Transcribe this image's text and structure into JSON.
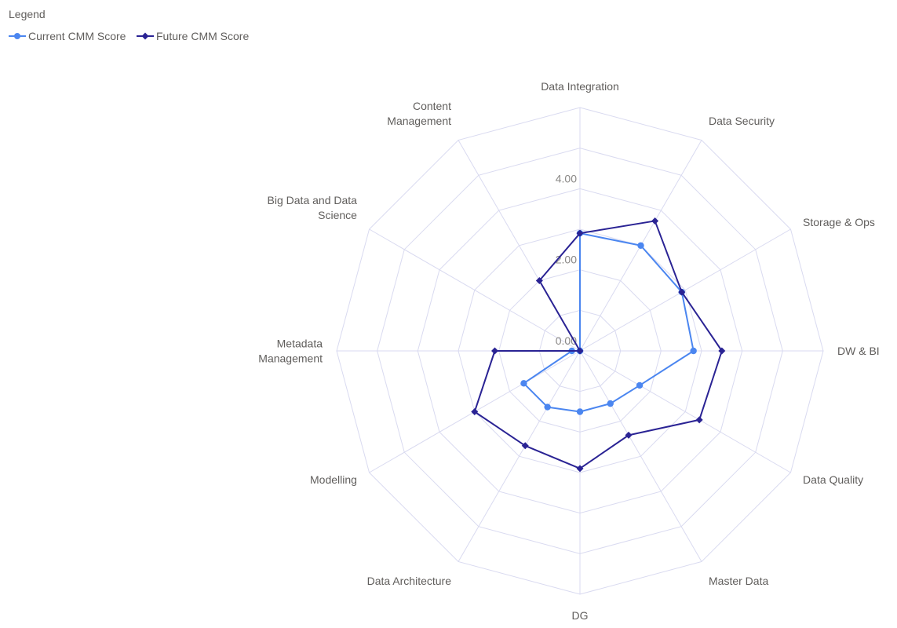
{
  "legend": {
    "title": "Legend",
    "items": [
      {
        "label": "Current CMM Score",
        "color": "#4b86f0",
        "marker": "circle"
      },
      {
        "label": "Future CMM Score",
        "color": "#2a2394",
        "marker": "diamond"
      }
    ]
  },
  "chart_data": {
    "type": "radar",
    "categories": [
      "Data Integration",
      "Data Security",
      "Storage & Ops",
      "DW & BI",
      "Data Quality",
      "Master Data",
      "DG",
      "Data Architecture",
      "Modelling",
      "Metadata\nManagement",
      "Big Data and Data\nScience",
      "Content\nManagement"
    ],
    "series": [
      {
        "name": "Current CMM Score",
        "color": "#4b86f0",
        "values": [
          2.9,
          3.0,
          2.9,
          2.8,
          1.7,
          1.5,
          1.5,
          1.6,
          1.6,
          0.2,
          0.0,
          0.0
        ]
      },
      {
        "name": "Future CMM Score",
        "color": "#2a2394",
        "values": [
          2.9,
          3.7,
          2.9,
          3.5,
          3.4,
          2.4,
          2.9,
          2.7,
          3.0,
          2.1,
          0.0,
          2.0
        ]
      }
    ],
    "rmin": 0,
    "rmax": 6,
    "tick_values": [
      0,
      2,
      4
    ],
    "tick_labels": [
      "0.00",
      "2.00",
      "4.00"
    ],
    "grid": true,
    "grid_color": "#d9daf0",
    "legend_position": "top-left"
  }
}
